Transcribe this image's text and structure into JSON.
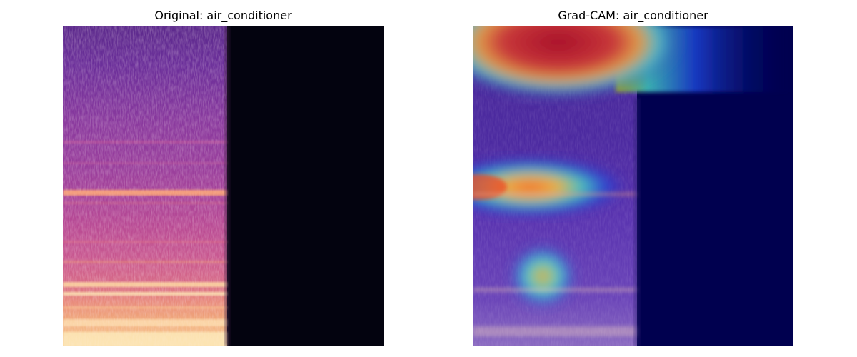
{
  "figure": {
    "left_title": "Original: air_conditioner",
    "right_title": "Grad-CAM: air_conditioner"
  },
  "colors": {
    "background": "#ffffff",
    "silence_original": "#03030f",
    "silence_gradcam": "#00004f",
    "spectro_purple": "#6b2f9a",
    "spectro_magenta": "#b4459a",
    "spectro_orange": "#f2956b",
    "spectro_cream": "#fde7b6",
    "cam_red": "#b9152a",
    "cam_yellow": "#f0c040",
    "cam_cyan": "#50c8c8",
    "cam_blue": "#2020b8"
  }
}
